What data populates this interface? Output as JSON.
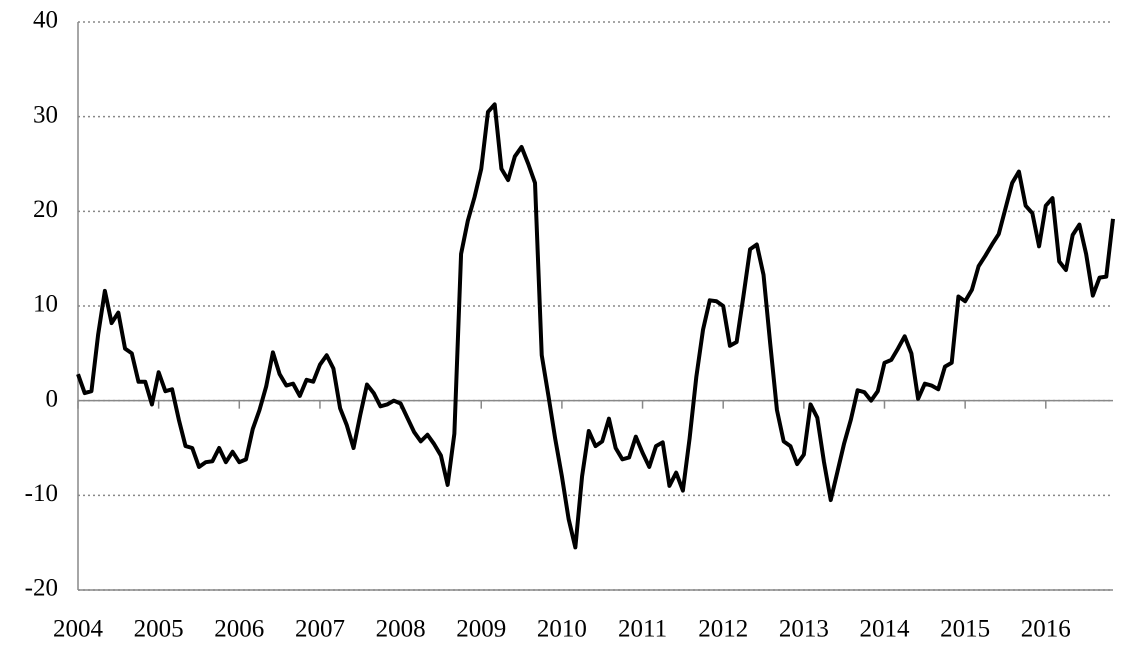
{
  "chart_data": {
    "type": "line",
    "categories": [
      "2004",
      null,
      null,
      null,
      null,
      null,
      null,
      null,
      null,
      null,
      null,
      null,
      "2005",
      null,
      null,
      null,
      null,
      null,
      null,
      null,
      null,
      null,
      null,
      null,
      "2006",
      null,
      null,
      null,
      null,
      null,
      null,
      null,
      null,
      null,
      null,
      null,
      "2007",
      null,
      null,
      null,
      null,
      null,
      null,
      null,
      null,
      null,
      null,
      null,
      "2008",
      null,
      null,
      null,
      null,
      null,
      null,
      null,
      null,
      null,
      null,
      null,
      "2009",
      null,
      null,
      null,
      null,
      null,
      null,
      null,
      null,
      null,
      null,
      null,
      "2010",
      null,
      null,
      null,
      null,
      null,
      null,
      null,
      null,
      null,
      null,
      null,
      "2011",
      null,
      null,
      null,
      null,
      null,
      null,
      null,
      null,
      null,
      null,
      null,
      "2012",
      null,
      null,
      null,
      null,
      null,
      null,
      null,
      null,
      null,
      null,
      null,
      "2013",
      null,
      null,
      null,
      null,
      null,
      null,
      null,
      null,
      null,
      null,
      null,
      "2014",
      null,
      null,
      null,
      null,
      null,
      null,
      null,
      null,
      null,
      null,
      null,
      "2015",
      null,
      null,
      null,
      null,
      null,
      null,
      null,
      null,
      null,
      null,
      null,
      "2016",
      null,
      null,
      null,
      null,
      null,
      null,
      null,
      null,
      null,
      null
    ],
    "values": [
      2.8,
      0.8,
      1.0,
      7,
      11.6,
      8.2,
      9.3,
      5.5,
      5,
      2,
      2,
      -0.4,
      3,
      1,
      1.2,
      -2,
      -4.8,
      -5,
      -7,
      -6.5,
      -6.4,
      -5,
      -6.5,
      -5.4,
      -6.5,
      -6.2,
      -3,
      -1,
      1.5,
      5.1,
      2.8,
      1.6,
      1.8,
      0.5,
      2.2,
      2,
      3.8,
      4.8,
      3.4,
      -0.8,
      -2.6,
      -5,
      -1.5,
      1.7,
      0.8,
      -0.6,
      -0.4,
      0,
      -0.3,
      -1.8,
      -3.3,
      -4.3,
      -3.6,
      -4.6,
      -5.8,
      -8.9,
      -3.5,
      15.5,
      19,
      21.5,
      24.5,
      30.5,
      31.3,
      24.5,
      23.3,
      25.8,
      26.8,
      25,
      23,
      4.8,
      0.5,
      -4,
      -8,
      -12.5,
      -15.5,
      -8,
      -3.2,
      -4.8,
      -4.3,
      -1.9,
      -5,
      -6.2,
      -6,
      -3.8,
      -5.5,
      -7,
      -4.8,
      -4.4,
      -9,
      -7.6,
      -9.5,
      -4,
      2.5,
      7.5,
      10.6,
      10.5,
      10,
      5.8,
      6.2,
      11,
      16,
      16.5,
      13.3,
      6,
      -1,
      -4.3,
      -4.8,
      -6.7,
      -5.7,
      -0.4,
      -1.8,
      -6.5,
      -10.5,
      -7.5,
      -4.5,
      -2,
      1.1,
      0.9,
      0,
      1,
      4,
      4.3,
      5.5,
      6.8,
      5,
      0.2,
      1.8,
      1.6,
      1.2,
      3.6,
      4,
      11,
      10.5,
      11.7,
      14.2,
      15.3,
      16.5,
      17.6,
      20.3,
      23,
      24.2,
      20.6,
      19.8,
      16.3,
      20.6,
      21.4,
      14.7,
      13.8,
      17.5,
      18.6,
      15.5,
      11.1,
      13,
      13.1,
      19.2
    ],
    "color": "#000000",
    "ylim": [
      -20,
      40
    ],
    "yticks": [
      -20,
      -10,
      0,
      10,
      20,
      30,
      40
    ],
    "grid": true
  }
}
